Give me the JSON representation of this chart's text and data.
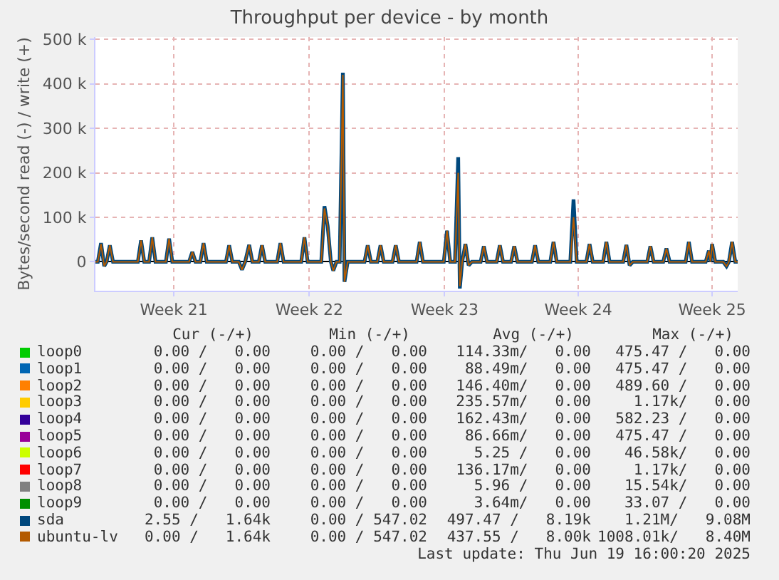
{
  "chart_data": {
    "type": "line",
    "title": "Throughput per device - by month",
    "ylabel": "Bytes/second read (-) / write (+)",
    "x": [
      "2025-05-17T06:00",
      "2025-05-17T09:00",
      "2025-05-17T13:00",
      "2025-05-17T17:00",
      "2025-05-17T20:00",
      "2025-05-18T00:00",
      "2025-05-18T04:00",
      "2025-05-19T11:00",
      "2025-05-19T15:00",
      "2025-05-19T19:00",
      "2025-05-20T01:00",
      "2025-05-20T05:00",
      "2025-05-20T09:00",
      "2025-05-20T22:00",
      "2025-05-21T02:00",
      "2025-05-21T06:00",
      "2025-05-22T03:00",
      "2025-05-22T07:00",
      "2025-05-22T11:00",
      "2025-05-22T17:00",
      "2025-05-22T21:00",
      "2025-05-23T01:00",
      "2025-05-24T01:00",
      "2025-05-24T05:00",
      "2025-05-24T09:00",
      "2025-05-24T17:00",
      "2025-05-24T21:00",
      "2025-05-25T01:00",
      "2025-05-25T06:00",
      "2025-05-25T10:00",
      "2025-05-25T18:00",
      "2025-05-25T22:00",
      "2025-05-26T02:00",
      "2025-05-26T17:00",
      "2025-05-26T21:00",
      "2025-05-27T01:00",
      "2025-05-27T23:00",
      "2025-05-28T03:00",
      "2025-05-28T07:00",
      "2025-05-29T00:00",
      "2025-05-29T04:00",
      "2025-05-29T08:00",
      "2025-05-29T12:00",
      "2025-05-29T15:00",
      "2025-05-29T19:00",
      "2025-05-29T23:00",
      "2025-05-30T03:00",
      "2025-05-30T05:00",
      "2025-05-30T09:00",
      "2025-05-31T06:00",
      "2025-05-31T10:00",
      "2025-05-31T14:00",
      "2025-05-31T22:00",
      "2025-06-01T02:00",
      "2025-06-01T06:00",
      "2025-06-01T17:00",
      "2025-06-01T21:00",
      "2025-06-02T01:00",
      "2025-06-02T23:00",
      "2025-06-03T03:00",
      "2025-06-03T07:00",
      "2025-06-04T09:00",
      "2025-06-04T13:00",
      "2025-06-04T17:00",
      "2025-06-04T23:00",
      "2025-06-05T03:00",
      "2025-06-05T05:00",
      "2025-06-05T08:00",
      "2025-06-05T12:00",
      "2025-06-05T16:00",
      "2025-06-05T20:00",
      "2025-06-06T07:00",
      "2025-06-06T11:00",
      "2025-06-06T15:00",
      "2025-06-07T03:00",
      "2025-06-07T07:00",
      "2025-06-07T11:00",
      "2025-06-07T21:00",
      "2025-06-08T01:00",
      "2025-06-08T05:00",
      "2025-06-08T23:00",
      "2025-06-09T03:00",
      "2025-06-09T07:00",
      "2025-06-09T22:00",
      "2025-06-10T02:00",
      "2025-06-10T06:00",
      "2025-06-10T23:00",
      "2025-06-11T03:00",
      "2025-06-11T07:00",
      "2025-06-11T19:00",
      "2025-06-11T23:00",
      "2025-06-12T03:00",
      "2025-06-12T16:00",
      "2025-06-12T20:00",
      "2025-06-13T00:00",
      "2025-06-13T17:00",
      "2025-06-13T21:00",
      "2025-06-14T01:00",
      "2025-06-14T05:00",
      "2025-06-14T23:00",
      "2025-06-15T03:00",
      "2025-06-15T07:00",
      "2025-06-15T19:00",
      "2025-06-15T23:00",
      "2025-06-16T03:00",
      "2025-06-16T23:00",
      "2025-06-17T03:00",
      "2025-06-17T07:00",
      "2025-06-18T00:00",
      "2025-06-18T04:00",
      "2025-06-18T06:00",
      "2025-06-18T08:00",
      "2025-06-18T12:00",
      "2025-06-18T22:00",
      "2025-06-19T02:00",
      "2025-06-19T05:00",
      "2025-06-19T09:00",
      "2025-06-19T13:00",
      "2025-06-19T16:00"
    ],
    "series": [
      {
        "name": "loop0",
        "color": "#00cc00",
        "values": [
          null,
          null,
          null,
          null,
          null,
          null,
          null,
          null,
          null,
          null,
          null,
          null,
          null,
          null,
          null,
          null,
          null,
          null,
          null,
          null,
          null,
          null,
          null,
          null,
          null,
          null,
          null,
          null,
          null,
          null,
          null,
          null,
          null,
          null,
          null,
          null,
          null,
          null,
          null,
          null,
          null,
          null,
          null,
          null,
          null,
          null,
          null,
          null,
          null,
          null,
          null,
          null,
          null,
          null,
          null,
          null,
          null,
          null,
          null,
          null,
          null,
          null,
          null,
          null,
          null,
          null,
          null,
          null,
          null,
          null,
          null,
          null,
          null,
          null,
          null,
          null,
          null,
          null,
          null,
          null,
          null,
          null,
          null,
          null,
          null,
          null,
          null,
          null,
          null,
          null,
          null,
          null,
          null,
          null,
          null,
          null,
          null,
          null,
          null,
          null,
          null,
          null,
          null,
          null,
          null,
          null,
          null,
          null,
          null,
          null,
          null,
          null,
          null,
          null,
          null,
          null,
          null,
          null,
          null
        ]
      },
      {
        "name": "loop1",
        "color": "#0066b3",
        "values": [
          null,
          null,
          null,
          null,
          null,
          null,
          null,
          null,
          null,
          null,
          null,
          null,
          null,
          null,
          null,
          null,
          null,
          null,
          null,
          null,
          null,
          null,
          null,
          null,
          null,
          null,
          null,
          null,
          null,
          null,
          null,
          null,
          null,
          null,
          null,
          null,
          null,
          null,
          null,
          null,
          null,
          null,
          null,
          null,
          null,
          null,
          null,
          null,
          null,
          null,
          null,
          null,
          null,
          null,
          null,
          null,
          null,
          null,
          null,
          null,
          null,
          null,
          null,
          null,
          null,
          null,
          null,
          null,
          null,
          null,
          null,
          null,
          null,
          null,
          null,
          null,
          null,
          null,
          null,
          null,
          null,
          null,
          null,
          null,
          null,
          null,
          null,
          null,
          null,
          null,
          null,
          null,
          null,
          null,
          null,
          null,
          null,
          null,
          null,
          null,
          null,
          null,
          null,
          null,
          null,
          null,
          null,
          null,
          null,
          null,
          null,
          null,
          null,
          null,
          null,
          null,
          null,
          null,
          null
        ]
      },
      {
        "name": "loop2",
        "color": "#ff8000",
        "values": [
          null,
          null,
          null,
          null,
          null,
          null,
          null,
          null,
          null,
          null,
          null,
          null,
          null,
          null,
          null,
          null,
          null,
          null,
          null,
          null,
          null,
          null,
          null,
          null,
          null,
          null,
          null,
          null,
          null,
          null,
          null,
          null,
          null,
          null,
          null,
          null,
          null,
          null,
          null,
          null,
          null,
          null,
          null,
          null,
          null,
          null,
          null,
          null,
          null,
          null,
          null,
          null,
          null,
          null,
          null,
          null,
          null,
          null,
          null,
          null,
          null,
          null,
          null,
          null,
          null,
          null,
          null,
          null,
          null,
          null,
          null,
          null,
          null,
          null,
          null,
          null,
          null,
          null,
          null,
          null,
          null,
          null,
          null,
          null,
          null,
          null,
          null,
          null,
          null,
          null,
          null,
          null,
          null,
          null,
          null,
          null,
          null,
          null,
          null,
          null,
          null,
          null,
          null,
          null,
          null,
          null,
          null,
          null,
          null,
          null,
          null,
          null,
          null,
          null,
          null,
          null,
          null,
          null,
          null
        ]
      },
      {
        "name": "loop3",
        "color": "#ffcc00",
        "values": [
          null,
          null,
          null,
          null,
          null,
          null,
          null,
          null,
          null,
          null,
          null,
          null,
          null,
          null,
          null,
          null,
          null,
          null,
          null,
          null,
          null,
          null,
          null,
          null,
          null,
          null,
          null,
          null,
          null,
          null,
          null,
          null,
          null,
          null,
          null,
          null,
          null,
          null,
          null,
          null,
          null,
          null,
          null,
          null,
          null,
          null,
          null,
          null,
          null,
          null,
          null,
          null,
          null,
          null,
          null,
          null,
          null,
          null,
          null,
          null,
          null,
          null,
          null,
          null,
          null,
          null,
          null,
          null,
          null,
          null,
          null,
          null,
          null,
          null,
          null,
          null,
          null,
          null,
          null,
          null,
          null,
          null,
          null,
          null,
          null,
          null,
          null,
          null,
          null,
          null,
          null,
          null,
          null,
          null,
          null,
          null,
          null,
          null,
          null,
          null,
          null,
          null,
          null,
          null,
          null,
          null,
          null,
          null,
          null,
          null,
          null,
          null,
          null,
          null,
          null,
          null,
          null,
          null,
          null
        ]
      },
      {
        "name": "loop4",
        "color": "#330099",
        "values": [
          null,
          null,
          null,
          null,
          null,
          null,
          null,
          null,
          null,
          null,
          null,
          null,
          null,
          null,
          null,
          null,
          null,
          null,
          null,
          null,
          null,
          null,
          null,
          null,
          null,
          null,
          null,
          null,
          null,
          null,
          null,
          null,
          null,
          null,
          null,
          null,
          null,
          null,
          null,
          null,
          null,
          null,
          null,
          null,
          null,
          null,
          null,
          null,
          null,
          null,
          null,
          null,
          null,
          null,
          null,
          null,
          null,
          null,
          null,
          null,
          null,
          null,
          null,
          null,
          null,
          null,
          null,
          null,
          null,
          null,
          null,
          null,
          null,
          null,
          null,
          null,
          null,
          null,
          null,
          null,
          null,
          null,
          null,
          null,
          null,
          null,
          null,
          null,
          null,
          null,
          null,
          null,
          null,
          null,
          null,
          null,
          null,
          null,
          null,
          null,
          null,
          null,
          null,
          null,
          null,
          null,
          null,
          null,
          null,
          null,
          null,
          null,
          null,
          null,
          null,
          null,
          null,
          null,
          null
        ]
      },
      {
        "name": "loop5",
        "color": "#990099",
        "values": [
          null,
          null,
          null,
          null,
          null,
          null,
          null,
          null,
          null,
          null,
          null,
          null,
          null,
          null,
          null,
          null,
          null,
          null,
          null,
          null,
          null,
          null,
          null,
          null,
          null,
          null,
          null,
          null,
          null,
          null,
          null,
          null,
          null,
          null,
          null,
          null,
          null,
          null,
          null,
          null,
          null,
          null,
          null,
          null,
          null,
          null,
          null,
          null,
          null,
          null,
          null,
          null,
          null,
          null,
          null,
          null,
          null,
          null,
          null,
          null,
          null,
          null,
          null,
          null,
          null,
          null,
          null,
          null,
          null,
          null,
          null,
          null,
          null,
          null,
          null,
          null,
          null,
          null,
          null,
          null,
          null,
          null,
          null,
          null,
          null,
          null,
          null,
          null,
          null,
          null,
          null,
          null,
          null,
          null,
          null,
          null,
          null,
          null,
          null,
          null,
          null,
          null,
          null,
          null,
          null,
          null,
          null,
          null,
          null,
          null,
          null,
          null,
          null,
          null,
          null,
          null,
          null,
          null,
          null
        ]
      },
      {
        "name": "loop6",
        "color": "#ccff00",
        "values": [
          null,
          null,
          null,
          null,
          null,
          null,
          null,
          null,
          null,
          null,
          null,
          null,
          null,
          null,
          null,
          null,
          null,
          null,
          null,
          null,
          null,
          null,
          null,
          null,
          null,
          null,
          null,
          null,
          null,
          null,
          null,
          null,
          null,
          null,
          null,
          null,
          null,
          null,
          null,
          null,
          null,
          null,
          null,
          null,
          null,
          null,
          null,
          null,
          null,
          null,
          null,
          null,
          null,
          null,
          null,
          null,
          null,
          null,
          null,
          null,
          null,
          null,
          null,
          null,
          null,
          null,
          null,
          null,
          null,
          null,
          null,
          null,
          null,
          null,
          null,
          null,
          null,
          null,
          null,
          null,
          null,
          null,
          null,
          null,
          null,
          null,
          null,
          null,
          null,
          null,
          null,
          null,
          null,
          null,
          null,
          null,
          null,
          null,
          null,
          null,
          null,
          null,
          null,
          null,
          null,
          null,
          null,
          null,
          null,
          null,
          null,
          null,
          null,
          null,
          null,
          null,
          null,
          null,
          null
        ]
      },
      {
        "name": "loop7",
        "color": "#ff0000",
        "values": [
          null,
          null,
          null,
          null,
          null,
          null,
          null,
          null,
          null,
          null,
          null,
          null,
          null,
          null,
          null,
          null,
          null,
          null,
          null,
          null,
          null,
          null,
          null,
          null,
          null,
          null,
          null,
          null,
          null,
          null,
          null,
          null,
          null,
          null,
          null,
          null,
          null,
          null,
          null,
          null,
          null,
          null,
          null,
          null,
          null,
          null,
          null,
          null,
          null,
          null,
          null,
          null,
          null,
          null,
          null,
          null,
          null,
          null,
          null,
          null,
          null,
          null,
          null,
          null,
          null,
          null,
          null,
          null,
          null,
          null,
          null,
          null,
          null,
          null,
          null,
          null,
          null,
          null,
          null,
          null,
          null,
          null,
          null,
          null,
          null,
          null,
          null,
          null,
          null,
          null,
          null,
          null,
          null,
          null,
          null,
          null,
          null,
          null,
          null,
          null,
          null,
          null,
          null,
          null,
          null,
          null,
          null,
          null,
          null,
          null,
          null,
          null,
          null,
          null,
          null,
          null,
          null,
          null,
          null
        ]
      },
      {
        "name": "loop8",
        "color": "#808080",
        "values": [
          null,
          null,
          null,
          null,
          null,
          null,
          null,
          null,
          null,
          null,
          null,
          null,
          null,
          null,
          null,
          null,
          null,
          null,
          null,
          null,
          null,
          null,
          null,
          null,
          null,
          null,
          null,
          null,
          null,
          null,
          null,
          null,
          null,
          null,
          null,
          null,
          null,
          null,
          null,
          null,
          null,
          null,
          null,
          null,
          null,
          null,
          null,
          null,
          null,
          null,
          null,
          null,
          null,
          null,
          null,
          null,
          null,
          null,
          null,
          null,
          null,
          null,
          null,
          null,
          null,
          null,
          null,
          null,
          null,
          null,
          null,
          null,
          null,
          null,
          null,
          null,
          null,
          null,
          null,
          null,
          null,
          null,
          null,
          null,
          null,
          null,
          null,
          null,
          null,
          null,
          null,
          null,
          null,
          null,
          null,
          null,
          null,
          null,
          null,
          null,
          null,
          null,
          null,
          null,
          null,
          null,
          null,
          null,
          null,
          null,
          null,
          null,
          null,
          null,
          null,
          null,
          null,
          null,
          null
        ]
      },
      {
        "name": "loop9",
        "color": "#008f00",
        "values": [
          null,
          null,
          null,
          null,
          null,
          null,
          null,
          null,
          null,
          null,
          null,
          null,
          null,
          null,
          null,
          null,
          null,
          null,
          null,
          null,
          null,
          null,
          null,
          null,
          null,
          null,
          null,
          null,
          null,
          null,
          null,
          null,
          null,
          null,
          null,
          null,
          null,
          null,
          null,
          null,
          null,
          null,
          null,
          null,
          null,
          null,
          null,
          null,
          null,
          null,
          null,
          null,
          null,
          null,
          null,
          null,
          null,
          null,
          null,
          null,
          null,
          null,
          null,
          null,
          null,
          null,
          null,
          null,
          null,
          null,
          null,
          null,
          null,
          null,
          null,
          null,
          null,
          null,
          null,
          null,
          null,
          null,
          null,
          null,
          null,
          null,
          null,
          null,
          null,
          null,
          null,
          null,
          null,
          null,
          null,
          null,
          null,
          null,
          null,
          null,
          null,
          null,
          null,
          null,
          null,
          null,
          null,
          null,
          null,
          null,
          null,
          null,
          null,
          null,
          null,
          null,
          null,
          null,
          null
        ]
      },
      {
        "name": "sda",
        "color": "#00487d",
        "values": [
          0,
          0,
          42000,
          -10000,
          0,
          37000,
          0,
          0,
          48000,
          0,
          0,
          55000,
          0,
          0,
          52000,
          0,
          0,
          22000,
          0,
          0,
          42000,
          0,
          0,
          37000,
          0,
          0,
          -18000,
          0,
          38000,
          0,
          0,
          37000,
          0,
          0,
          42000,
          0,
          0,
          55000,
          0,
          0,
          125000,
          80000,
          0,
          -20000,
          0,
          0,
          425000,
          -45000,
          0,
          0,
          37000,
          0,
          0,
          37000,
          0,
          0,
          37000,
          0,
          0,
          45000,
          0,
          0,
          70000,
          0,
          0,
          235000,
          -60000,
          0,
          40000,
          -8000,
          0,
          0,
          35000,
          0,
          0,
          37000,
          0,
          0,
          35000,
          0,
          0,
          37000,
          0,
          0,
          45000,
          0,
          0,
          140000,
          0,
          0,
          40000,
          0,
          0,
          45000,
          0,
          0,
          38000,
          -8000,
          0,
          0,
          35000,
          0,
          0,
          30000,
          0,
          0,
          45000,
          0,
          0,
          25000,
          0,
          40000,
          0,
          0,
          -10000,
          0,
          45000,
          0,
          0
        ]
      },
      {
        "name": "ubuntu-lv",
        "color": "#b35a00",
        "values": [
          0,
          0,
          40000,
          -10000,
          0,
          37000,
          0,
          0,
          48000,
          0,
          0,
          55000,
          0,
          0,
          52000,
          0,
          0,
          22000,
          0,
          0,
          42000,
          0,
          0,
          37000,
          0,
          0,
          -18000,
          0,
          38000,
          0,
          0,
          37000,
          0,
          0,
          42000,
          0,
          0,
          55000,
          0,
          0,
          120000,
          80000,
          0,
          -20000,
          0,
          0,
          420000,
          -45000,
          0,
          0,
          37000,
          0,
          0,
          37000,
          0,
          0,
          37000,
          0,
          0,
          45000,
          0,
          0,
          70000,
          0,
          0,
          200000,
          -55000,
          0,
          40000,
          -8000,
          0,
          0,
          35000,
          0,
          0,
          37000,
          0,
          0,
          35000,
          0,
          0,
          37000,
          0,
          0,
          45000,
          0,
          0,
          100000,
          0,
          0,
          40000,
          0,
          0,
          45000,
          0,
          0,
          38000,
          -8000,
          0,
          0,
          35000,
          0,
          0,
          30000,
          0,
          0,
          45000,
          0,
          0,
          25000,
          0,
          40000,
          0,
          0,
          -10000,
          0,
          45000,
          0,
          0
        ]
      }
    ],
    "xlim": [
      "2025-05-17T06:00",
      "2025-06-19T16:00"
    ],
    "xticks": [
      {
        "value": "2025-05-21T08:00",
        "label": "Week 21"
      },
      {
        "value": "2025-05-28T09:00",
        "label": "Week 22"
      },
      {
        "value": "2025-06-04T10:00",
        "label": "Week 23"
      },
      {
        "value": "2025-06-11T09:00",
        "label": "Week 24"
      },
      {
        "value": "2025-06-18T08:00",
        "label": "Week 25"
      }
    ],
    "ylim": [
      -65000,
      505000
    ],
    "yticks": [
      0,
      {
        "value": 100000,
        "label": "100 k"
      },
      {
        "value": 200000,
        "label": "200 k"
      },
      {
        "value": 300000,
        "label": "300 k"
      },
      {
        "value": 400000,
        "label": "400 k"
      },
      {
        "value": 500000,
        "label": "500 k"
      }
    ],
    "grid": true,
    "legend": "bottom",
    "annotations": [
      "Cur (-/+)",
      "Min (-/+)",
      "Avg (-/+)",
      "Max (-/+)",
      "0.00 /   0.00",
      "0.00 /   0.00",
      "114.33m/   0.00",
      "475.47 /   0.00",
      "0.00 /   0.00",
      "0.00 /   0.00",
      "88.49m/   0.00",
      "475.47 /   0.00",
      "0.00 /   0.00",
      "0.00 /   0.00",
      "146.40m/   0.00",
      "489.60 /   0.00",
      "0.00 /   0.00",
      "0.00 /   0.00",
      "235.57m/   0.00",
      "1.17k/   0.00",
      "0.00 /   0.00",
      "0.00 /   0.00",
      "162.43m/   0.00",
      "582.23 /   0.00",
      "0.00 /   0.00",
      "0.00 /   0.00",
      "86.66m/   0.00",
      "475.47 /   0.00",
      "0.00 /   0.00",
      "0.00 /   0.00",
      "5.25 /   0.00",
      "46.58k/   0.00",
      "0.00 /   0.00",
      "0.00 /   0.00",
      "136.17m/   0.00",
      "1.17k/   0.00",
      "0.00 /   0.00",
      "0.00 /   0.00",
      "5.96 /   0.00",
      "15.54k/   0.00",
      "0.00 /   0.00",
      "0.00 /   0.00",
      "3.64m/   0.00",
      "33.07 /   0.00",
      "2.55 /   1.64k",
      "0.00 / 547.02",
      "497.47 /   8.19k",
      "1.21M/   9.08M",
      "0.00 /   1.64k",
      "0.00 / 547.02",
      "437.55 /   8.00k",
      "1008.01k/   8.40M",
      "Last update: Thu Jun 19 16:00:20 2025"
    ]
  }
}
